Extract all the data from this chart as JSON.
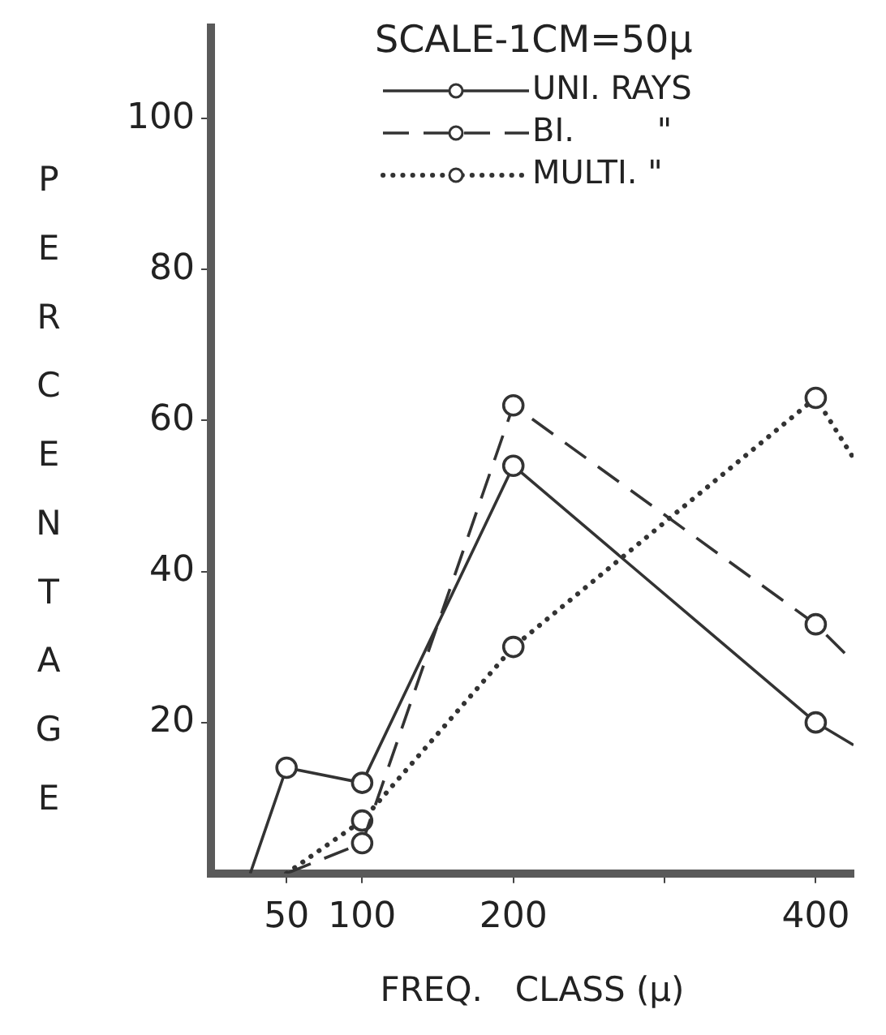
{
  "chart_data": {
    "type": "line",
    "xlabel": "FREQ.   CLASS (μ)",
    "ylabel": "PERCENTAGE",
    "annotations": [
      "SCALE-1CM=50μ"
    ],
    "xlim": [
      0,
      425
    ],
    "xticks": [
      50,
      100,
      200,
      {
        "value": 300,
        "label": null
      },
      400
    ],
    "ylim": [
      0,
      112
    ],
    "yticks": [
      20,
      40,
      60,
      80,
      100
    ],
    "grid": false,
    "legend": "top right",
    "marker": "circle",
    "series": [
      {
        "name": "UNI. RAYS",
        "color": "#333333",
        "line_style": "solid",
        "x": [
          26,
          50,
          100,
          200,
          400,
          425
        ],
        "values": [
          0,
          14,
          12,
          54,
          20,
          17
        ]
      },
      {
        "name": "BI.        \"",
        "color": "#333333",
        "line_style": "dashed",
        "x": [
          50,
          100,
          200,
          400,
          425
        ],
        "values": [
          0,
          4,
          62,
          33,
          28
        ]
      },
      {
        "name": "MULTI. \"",
        "color": "#333333",
        "line_style": "dotted",
        "x": [
          50,
          100,
          200,
          400,
          425
        ],
        "values": [
          0,
          7,
          30,
          63,
          55
        ]
      }
    ]
  }
}
